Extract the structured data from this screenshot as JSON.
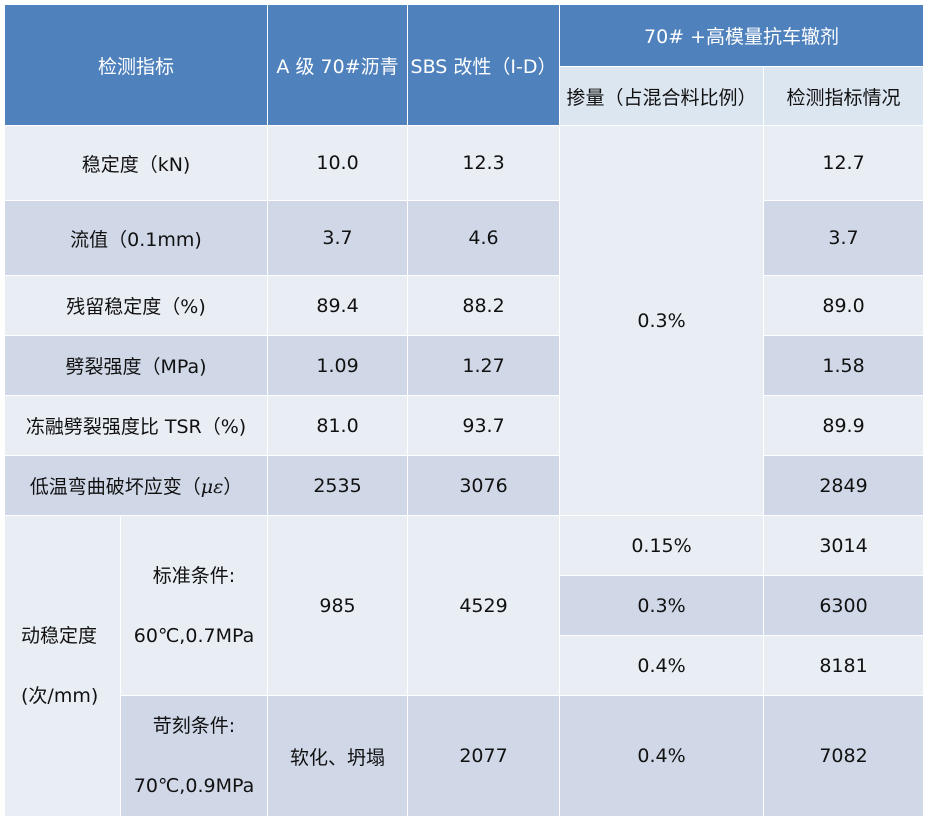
{
  "header": {
    "indicator": "检测指标",
    "col_a": "A 级 70#沥青",
    "col_sbs": "SBS 改性（I-D）",
    "group": "70#  +高模量抗车辙剂",
    "dosage": "掺量（占混合料比例）",
    "result": "检测指标情况"
  },
  "rows": [
    {
      "label": "稳定度（kN)",
      "a": "10.0",
      "sbs": "12.3",
      "result": "12.7"
    },
    {
      "label": "流值（0.1mm)",
      "a": "3.7",
      "sbs": "4.6",
      "result": "3.7"
    },
    {
      "label": "残留稳定度（%)",
      "a": "89.4",
      "sbs": "88.2",
      "result": "89.0"
    },
    {
      "label": "劈裂强度（MPa)",
      "a": "1.09",
      "sbs": "1.27",
      "result": "1.58"
    },
    {
      "label": "冻融劈裂强度比 TSR（%)",
      "a": "81.0",
      "sbs": "93.7",
      "result": "89.9"
    },
    {
      "label_prefix": "低温弯曲破坏应变（",
      "label_unit": "με",
      "label_suffix": "）",
      "a": "2535",
      "sbs": "3076",
      "result": "2849"
    }
  ],
  "shared_dosage": "0.3%",
  "dynamic": {
    "label_line1": "动稳定度",
    "label_line2": "(次/mm)",
    "standard": {
      "cond_line1": "标准条件:",
      "cond_line2": "60℃,0.7MPa",
      "a": "985",
      "sbs": "4529",
      "sub_rows": [
        {
          "dosage": "0.15%",
          "result": "3014"
        },
        {
          "dosage": "0.3%",
          "result": "6300"
        },
        {
          "dosage": "0.4%",
          "result": "8181"
        }
      ]
    },
    "severe": {
      "cond_line1": "苛刻条件:",
      "cond_line2": "70℃,0.9MPa",
      "a": "软化、坍塌",
      "sbs": "2077",
      "dosage": "0.4%",
      "result": "7082"
    }
  }
}
